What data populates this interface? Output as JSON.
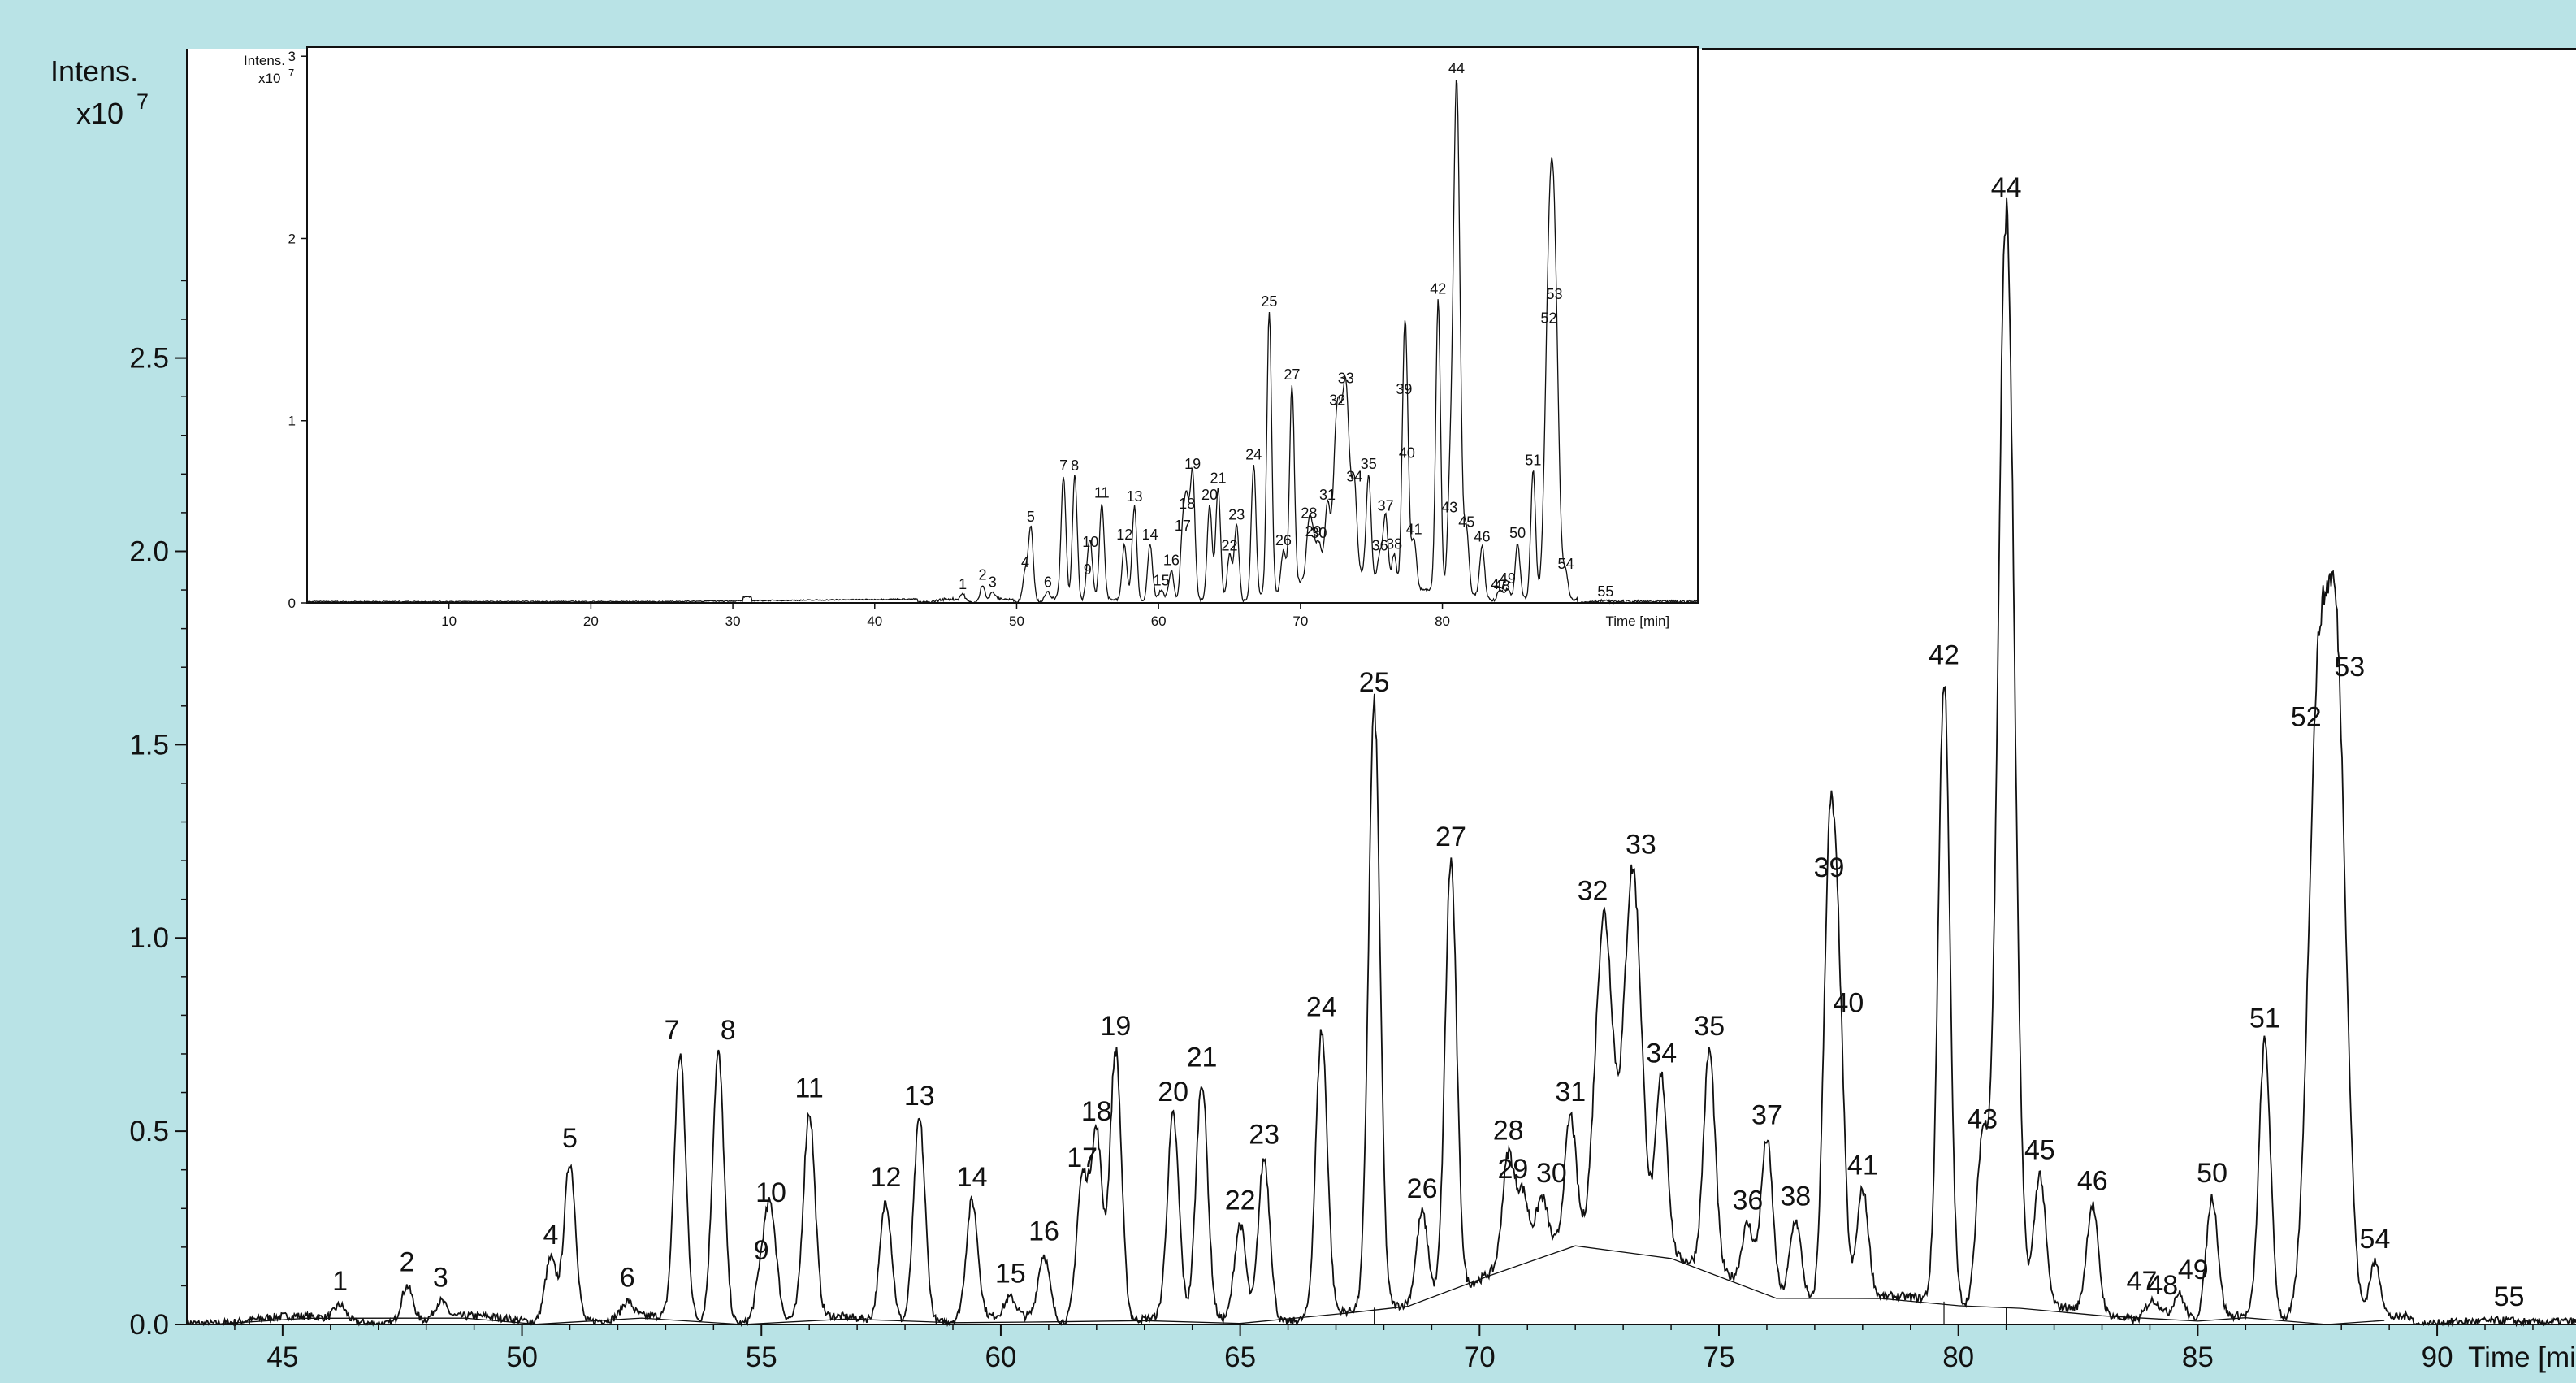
{
  "chart_data": [
    {
      "type": "line",
      "title": "",
      "xlabel": "Time [min]",
      "ylabel": "Intens.",
      "ylabel_multiplier": "x10",
      "ylabel_exponent": "7",
      "xlim": [
        43,
        92.9
      ],
      "ylim": [
        0,
        3.3
      ],
      "xticks": [
        "45",
        "50",
        "55",
        "60",
        "65",
        "70",
        "75",
        "80",
        "85",
        "90"
      ],
      "yticks": [
        "0.0",
        "0.5",
        "1.0",
        "1.5",
        "2.0",
        "2.5"
      ],
      "grid": false,
      "colors": {
        "background": "#b9e3e6",
        "plot": "#ffffff",
        "trace": "#111111"
      },
      "peaks": [
        {
          "label": "1",
          "x": 46.2,
          "y": 0.05
        },
        {
          "label": "2",
          "x": 47.6,
          "y": 0.1
        },
        {
          "label": "3",
          "x": 48.3,
          "y": 0.06
        },
        {
          "label": "4",
          "x": 50.6,
          "y": 0.17
        },
        {
          "label": "5",
          "x": 51.0,
          "y": 0.42
        },
        {
          "label": "6",
          "x": 52.2,
          "y": 0.06
        },
        {
          "label": "7",
          "x": 53.3,
          "y": 0.7
        },
        {
          "label": "8",
          "x": 54.1,
          "y": 0.7
        },
        {
          "label": "9",
          "x": 55.0,
          "y": 0.13
        },
        {
          "label": "10",
          "x": 55.2,
          "y": 0.28
        },
        {
          "label": "11",
          "x": 56.0,
          "y": 0.55
        },
        {
          "label": "12",
          "x": 57.6,
          "y": 0.32
        },
        {
          "label": "13",
          "x": 58.3,
          "y": 0.53
        },
        {
          "label": "14",
          "x": 59.4,
          "y": 0.32
        },
        {
          "label": "15",
          "x": 60.2,
          "y": 0.07
        },
        {
          "label": "16",
          "x": 60.9,
          "y": 0.18
        },
        {
          "label": "17",
          "x": 61.7,
          "y": 0.37
        },
        {
          "label": "18",
          "x": 62.0,
          "y": 0.49
        },
        {
          "label": "19",
          "x": 62.4,
          "y": 0.71
        },
        {
          "label": "20",
          "x": 63.6,
          "y": 0.54
        },
        {
          "label": "21",
          "x": 64.2,
          "y": 0.63
        },
        {
          "label": "22",
          "x": 65.0,
          "y": 0.26
        },
        {
          "label": "23",
          "x": 65.5,
          "y": 0.43
        },
        {
          "label": "24",
          "x": 66.7,
          "y": 0.76
        },
        {
          "label": "25",
          "x": 67.8,
          "y": 1.6
        },
        {
          "label": "26",
          "x": 68.8,
          "y": 0.29
        },
        {
          "label": "27",
          "x": 69.4,
          "y": 1.2
        },
        {
          "label": "28",
          "x": 70.6,
          "y": 0.44
        },
        {
          "label": "29",
          "x": 70.9,
          "y": 0.34
        },
        {
          "label": "30",
          "x": 71.3,
          "y": 0.33
        },
        {
          "label": "31",
          "x": 71.9,
          "y": 0.54
        },
        {
          "label": "32",
          "x": 72.6,
          "y": 1.06
        },
        {
          "label": "33",
          "x": 73.2,
          "y": 1.18
        },
        {
          "label": "34",
          "x": 73.8,
          "y": 0.64
        },
        {
          "label": "35",
          "x": 74.8,
          "y": 0.71
        },
        {
          "label": "36",
          "x": 75.6,
          "y": 0.26
        },
        {
          "label": "37",
          "x": 76.0,
          "y": 0.48
        },
        {
          "label": "38",
          "x": 76.6,
          "y": 0.27
        },
        {
          "label": "39",
          "x": 77.3,
          "y": 1.12
        },
        {
          "label": "40",
          "x": 77.5,
          "y": 0.77
        },
        {
          "label": "41",
          "x": 78.0,
          "y": 0.35
        },
        {
          "label": "42",
          "x": 79.7,
          "y": 1.67
        },
        {
          "label": "43",
          "x": 80.5,
          "y": 0.47
        },
        {
          "label": "44",
          "x": 81.0,
          "y": 2.88
        },
        {
          "label": "45",
          "x": 81.7,
          "y": 0.39
        },
        {
          "label": "46",
          "x": 82.8,
          "y": 0.31
        },
        {
          "label": "47",
          "x": 84.0,
          "y": 0.05
        },
        {
          "label": "48",
          "x": 84.2,
          "y": 0.04
        },
        {
          "label": "49",
          "x": 84.6,
          "y": 0.08
        },
        {
          "label": "50",
          "x": 85.3,
          "y": 0.33
        },
        {
          "label": "51",
          "x": 86.4,
          "y": 0.73
        },
        {
          "label": "52",
          "x": 87.5,
          "y": 1.51
        },
        {
          "label": "53",
          "x": 87.9,
          "y": 1.64
        },
        {
          "label": "54",
          "x": 88.7,
          "y": 0.16
        },
        {
          "label": "55",
          "x": 91.5,
          "y": 0.01
        }
      ]
    },
    {
      "type": "line",
      "title": "",
      "xlabel": "Time [min]",
      "ylabel": "Intens.",
      "ylabel_multiplier": "x10",
      "ylabel_exponent": "7",
      "xlim": [
        0,
        98
      ],
      "ylim": [
        0,
        3.05
      ],
      "xticks": [
        "10",
        "20",
        "30",
        "40",
        "50",
        "60",
        "70",
        "80"
      ],
      "yticks": [
        "0",
        "1",
        "2",
        "3"
      ],
      "grid": false,
      "note_peaks": "same 55 numbered peaks as the main trace, shown over full run time"
    }
  ]
}
